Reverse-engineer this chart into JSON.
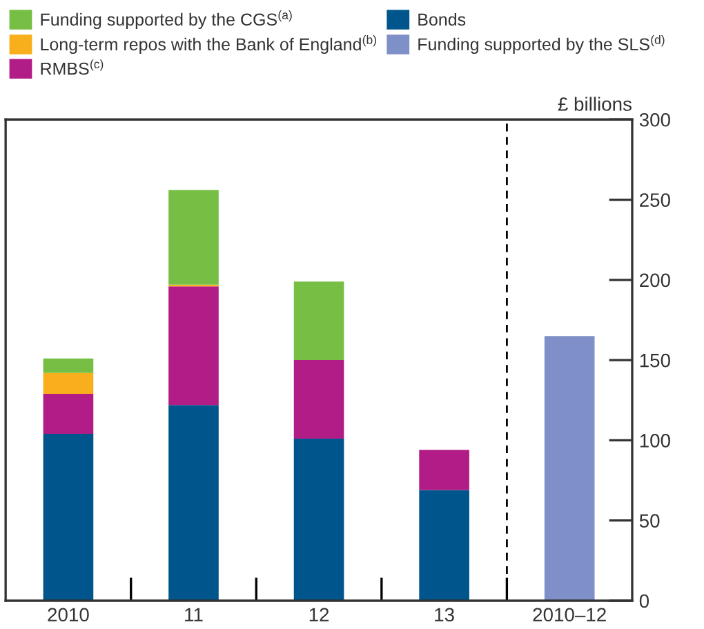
{
  "chart_data": {
    "type": "bar",
    "stacked": true,
    "ylabel": "£ billions",
    "categories": [
      "2010",
      "11",
      "12",
      "13",
      "2010–12"
    ],
    "series": [
      {
        "name": "Funding supported by the SLS$^{(d)}$",
        "color": "#7f8fc8",
        "values": [
          null,
          null,
          null,
          null,
          165
        ]
      },
      {
        "name": "Bonds",
        "color": "#00568c",
        "values": [
          104,
          122,
          101,
          69,
          null
        ]
      },
      {
        "name": "RMBS$^{(c)}$",
        "color": "#b11c87",
        "values": [
          25,
          74,
          49,
          25,
          null
        ]
      },
      {
        "name": "Long-term repos with the Bank of England$^{(b)}$",
        "color": "#f9ae1c",
        "values": [
          13,
          1,
          0,
          0,
          null
        ]
      },
      {
        "name": "Funding supported by the CGS$^{(a)}$",
        "color": "#76bf44",
        "values": [
          9,
          59,
          49,
          0,
          null
        ]
      }
    ],
    "ylim": [
      0,
      300
    ],
    "yticks": [
      0,
      50,
      100,
      150,
      200,
      250,
      300
    ],
    "grid": false,
    "legend": "top"
  }
}
